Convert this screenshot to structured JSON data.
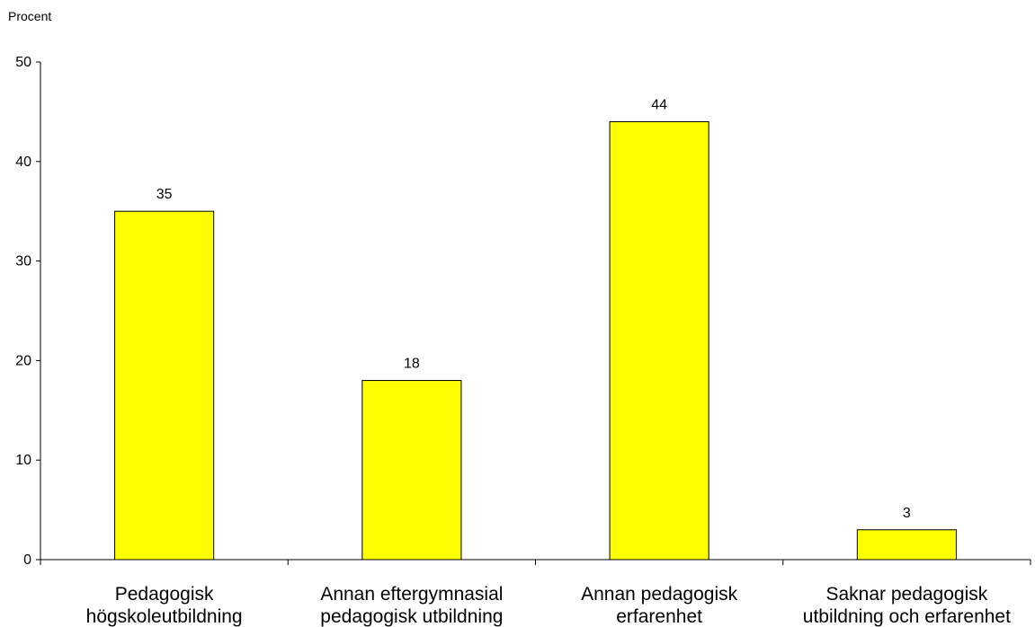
{
  "chart_data": {
    "type": "bar",
    "ylabel": "Procent",
    "ylim": [
      0,
      50
    ],
    "yticks": [
      0,
      10,
      20,
      30,
      40,
      50
    ],
    "grid": false,
    "categories": [
      [
        "Pedagogisk",
        "högskoleutbildning"
      ],
      [
        "Annan eftergymnasial",
        "pedagogisk utbildning"
      ],
      [
        "Annan pedagogisk",
        "erfarenhet"
      ],
      [
        "Saknar pedagogisk",
        "utbildning och erfarenhet"
      ]
    ],
    "values": [
      35,
      18,
      44,
      3
    ],
    "data_labels": [
      "35",
      "18",
      "44",
      "3"
    ],
    "bar_color": "#FFFF00",
    "bar_edge_color": "#000000"
  }
}
